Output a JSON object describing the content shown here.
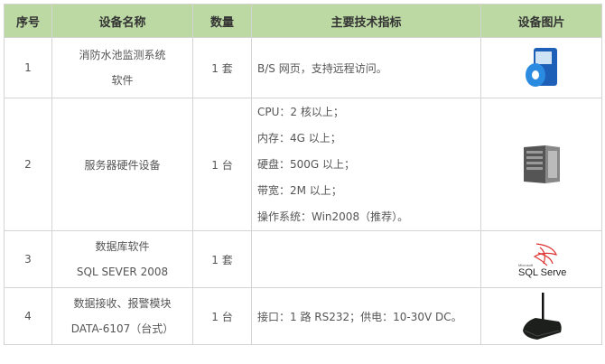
{
  "headers": [
    "序号",
    "设备名称",
    "数量",
    "主要技术指标",
    "设备图片"
  ],
  "rows": [
    {
      "no": "1",
      "name": [
        "消防水池监测系统",
        "软件"
      ],
      "qty": "1 套",
      "specs": [
        "B/S 网页，支持远程访问。"
      ],
      "image": "software-box-icon"
    },
    {
      "no": "2",
      "name": [
        "服务器硬件设备"
      ],
      "qty": "1 台",
      "specs": [
        "CPU：2 核以上；",
        "内存：4G 以上；",
        "硬盘：500G 以上；",
        "带宽：2M 以上；",
        "操作系统：Win2008（推荐）。"
      ],
      "image": "server-tower-icon"
    },
    {
      "no": "3",
      "name": [
        "数据库软件",
        "SQL SEVER 2008"
      ],
      "qty": "1 套",
      "specs": [],
      "image": "sql-server-logo",
      "logo_text": "Microsoft SQL Server"
    },
    {
      "no": "4",
      "name": [
        "数据接收、报警模块",
        "DATA-6107（台式）"
      ],
      "qty": "1 台",
      "specs": [
        "接口：1 路 RS232；供电：10-30V DC。"
      ],
      "image": "wireless-router-icon"
    }
  ],
  "colors": {
    "header_bg": "#bcd9a4",
    "border": "#d4d4d4",
    "text": "#555555"
  }
}
